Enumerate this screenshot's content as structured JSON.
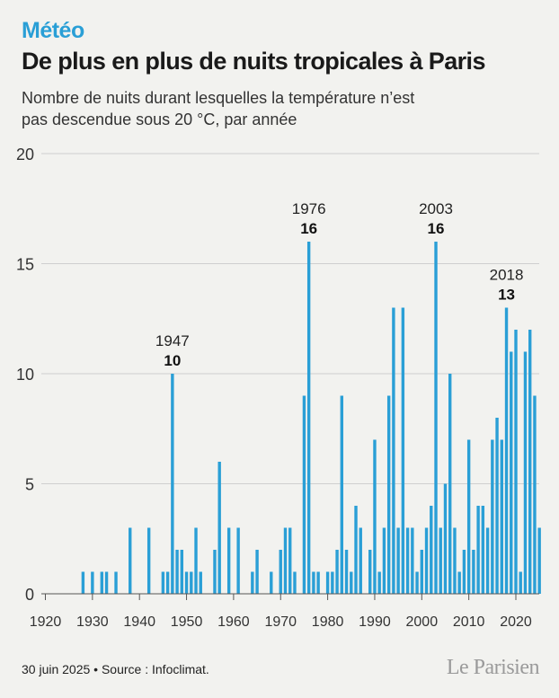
{
  "header": {
    "kicker": "Météo",
    "title": "De plus en plus de nuits tropicales à Paris",
    "subtitle": "Nombre de nuits durant lesquelles la température n’est pas descendue sous 20 °C, par année"
  },
  "footer": {
    "source": "30 juin 2025 • Source : Infoclimat.",
    "logo": "Le Parisien"
  },
  "colors": {
    "kicker": "#2a9fd6",
    "bar": "#2a9fd6",
    "grid": "#cfcfcf",
    "text": "#1a1a1a"
  },
  "chart_data": {
    "type": "bar",
    "title": "",
    "xlabel": "",
    "ylabel": "",
    "xlim": [
      1920,
      2025
    ],
    "ylim": [
      0,
      20
    ],
    "yticks": [
      0,
      5,
      10,
      15,
      20
    ],
    "xticks": [
      1920,
      1930,
      1940,
      1950,
      1960,
      1970,
      1980,
      1990,
      2000,
      2010,
      2020
    ],
    "grid": true,
    "x": [
      1928,
      1930,
      1932,
      1933,
      1935,
      1938,
      1942,
      1945,
      1946,
      1947,
      1948,
      1949,
      1950,
      1951,
      1952,
      1953,
      1956,
      1957,
      1959,
      1961,
      1964,
      1965,
      1968,
      1970,
      1971,
      1972,
      1973,
      1975,
      1976,
      1977,
      1978,
      1980,
      1981,
      1982,
      1983,
      1984,
      1985,
      1986,
      1987,
      1989,
      1990,
      1991,
      1992,
      1993,
      1994,
      1995,
      1996,
      1997,
      1998,
      1999,
      2000,
      2001,
      2002,
      2003,
      2004,
      2005,
      2006,
      2007,
      2008,
      2009,
      2010,
      2011,
      2012,
      2013,
      2014,
      2015,
      2016,
      2017,
      2018,
      2019,
      2020,
      2021,
      2022,
      2023,
      2024,
      2025
    ],
    "values": [
      1,
      1,
      1,
      1,
      1,
      3,
      3,
      1,
      1,
      10,
      2,
      2,
      1,
      1,
      3,
      1,
      2,
      6,
      3,
      3,
      1,
      2,
      1,
      2,
      3,
      3,
      1,
      9,
      16,
      1,
      1,
      1,
      1,
      2,
      9,
      2,
      1,
      4,
      3,
      2,
      7,
      1,
      3,
      9,
      13,
      3,
      13,
      3,
      3,
      1,
      2,
      3,
      4,
      16,
      3,
      5,
      10,
      3,
      1,
      2,
      7,
      2,
      4,
      4,
      3,
      7,
      8,
      7,
      13,
      11,
      12,
      1,
      11,
      12,
      9,
      3
    ],
    "annotations": [
      {
        "year": 1947,
        "label": "1947",
        "value": "10"
      },
      {
        "year": 1976,
        "label": "1976",
        "value": "16"
      },
      {
        "year": 2003,
        "label": "2003",
        "value": "16"
      },
      {
        "year": 2018,
        "label": "2018",
        "value": "13"
      }
    ]
  }
}
